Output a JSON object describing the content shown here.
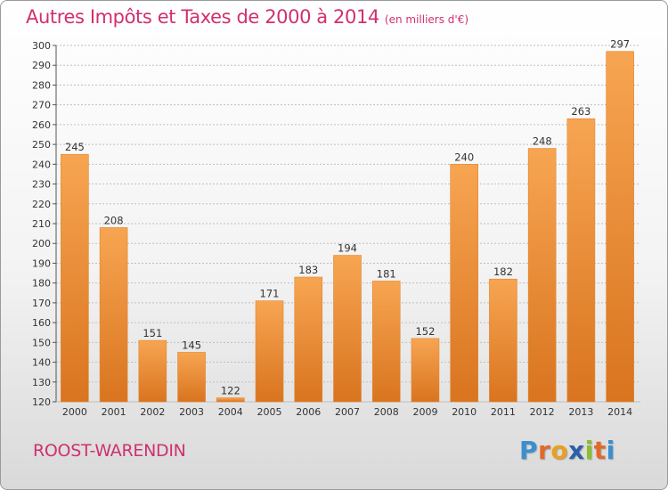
{
  "header": {
    "title": "Autres Impôts et Taxes de 2000 à 2014",
    "subtitle": "(en milliers d'€)"
  },
  "footer": {
    "place_name": "ROOST-WARENDIN",
    "logo_letters": [
      "P",
      "r",
      "o",
      "x",
      "i",
      "t",
      "i"
    ],
    "logo_colors": [
      "#3a8fd0",
      "#e06a2c",
      "#e8a020",
      "#2c5fa8",
      "#8bbf2c",
      "#e06a2c",
      "#3a8fd0"
    ]
  },
  "colors": {
    "title": "#d0306e",
    "bar_light": "#f7a552",
    "bar_dark": "#d9741f",
    "grid": "#bfbfbf"
  },
  "chart_data": {
    "type": "bar",
    "title": "Autres Impôts et Taxes de 2000 à 2014",
    "xlabel": "",
    "ylabel": "",
    "categories": [
      "2000",
      "2001",
      "2002",
      "2003",
      "2004",
      "2005",
      "2006",
      "2007",
      "2008",
      "2009",
      "2010",
      "2011",
      "2012",
      "2013",
      "2014"
    ],
    "values": [
      245,
      208,
      151,
      145,
      122,
      171,
      183,
      194,
      181,
      152,
      240,
      182,
      248,
      263,
      297
    ],
    "ylim": [
      120,
      300
    ],
    "yticks": [
      120,
      130,
      140,
      150,
      160,
      170,
      180,
      190,
      200,
      210,
      220,
      230,
      240,
      250,
      260,
      270,
      280,
      290,
      300
    ],
    "grid": true
  }
}
